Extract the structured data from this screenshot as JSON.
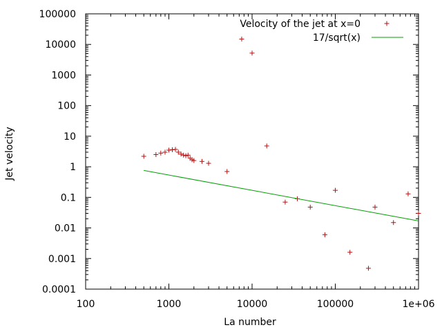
{
  "chart_data": {
    "type": "scatter",
    "xlabel": "La number",
    "ylabel": "Jet velocity",
    "x_scale": "log",
    "y_scale": "log",
    "xlim": [
      100,
      1000000
    ],
    "ylim": [
      0.0001,
      100000
    ],
    "x_ticks": [
      {
        "value": 100,
        "label": "100"
      },
      {
        "value": 1000,
        "label": "1000"
      },
      {
        "value": 10000,
        "label": "10000"
      },
      {
        "value": 100000,
        "label": "100000"
      },
      {
        "value": 1000000,
        "label": "1e+06"
      }
    ],
    "y_ticks": [
      {
        "value": 0.0001,
        "label": "0.0001"
      },
      {
        "value": 0.001,
        "label": "0.001"
      },
      {
        "value": 0.01,
        "label": "0.01"
      },
      {
        "value": 0.1,
        "label": "0.1"
      },
      {
        "value": 1,
        "label": "1"
      },
      {
        "value": 10,
        "label": "10"
      },
      {
        "value": 100,
        "label": "100"
      },
      {
        "value": 1000,
        "label": "1000"
      },
      {
        "value": 10000,
        "label": "10000"
      },
      {
        "value": 100000,
        "label": "100000"
      }
    ],
    "grid": false,
    "legend_position": "top-right",
    "series": [
      {
        "name": "Velocity of the jet at x=0",
        "kind": "points",
        "marker": "plus",
        "color": "#b01010",
        "points": [
          {
            "x": 500,
            "y": 2.2
          },
          {
            "x": 700,
            "y": 2.5
          },
          {
            "x": 800,
            "y": 2.8
          },
          {
            "x": 900,
            "y": 3.0
          },
          {
            "x": 1000,
            "y": 3.5
          },
          {
            "x": 1100,
            "y": 3.6
          },
          {
            "x": 1200,
            "y": 3.7
          },
          {
            "x": 1300,
            "y": 3.0
          },
          {
            "x": 1400,
            "y": 2.6
          },
          {
            "x": 1500,
            "y": 2.4
          },
          {
            "x": 1600,
            "y": 2.3
          },
          {
            "x": 1700,
            "y": 2.4
          },
          {
            "x": 1800,
            "y": 1.9
          },
          {
            "x": 1900,
            "y": 1.7
          },
          {
            "x": 2000,
            "y": 1.6
          },
          {
            "x": 2500,
            "y": 1.5
          },
          {
            "x": 3000,
            "y": 1.3
          },
          {
            "x": 5000,
            "y": 0.7
          },
          {
            "x": 7500,
            "y": 15000
          },
          {
            "x": 10000,
            "y": 5200
          },
          {
            "x": 15000,
            "y": 4.8
          },
          {
            "x": 25000,
            "y": 0.07
          },
          {
            "x": 35000,
            "y": 0.09
          },
          {
            "x": 50000,
            "y": 0.048
          },
          {
            "x": 75000,
            "y": 0.006
          },
          {
            "x": 100000,
            "y": 0.17
          },
          {
            "x": 150000,
            "y": 0.0016
          },
          {
            "x": 250000,
            "y": 0.00048
          },
          {
            "x": 300000,
            "y": 0.048
          },
          {
            "x": 500000,
            "y": 0.015
          },
          {
            "x": 750000,
            "y": 0.13
          },
          {
            "x": 1000000,
            "y": 0.03
          }
        ]
      },
      {
        "name": "17/sqrt(x)",
        "kind": "line",
        "color": "#00a000",
        "points": [
          {
            "x": 500,
            "y": 0.76
          },
          {
            "x": 1000000,
            "y": 0.017
          }
        ]
      }
    ]
  }
}
